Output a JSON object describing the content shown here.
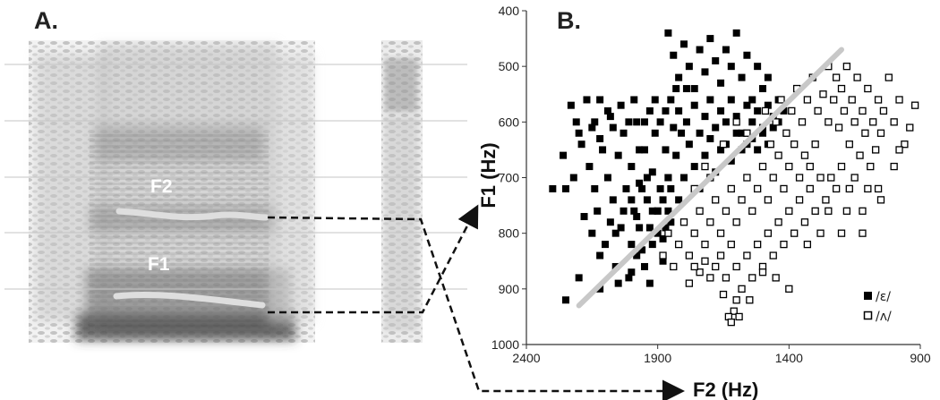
{
  "panels": {
    "a": "A.",
    "b": "B."
  },
  "spectrogram": {
    "f2_label": "F2",
    "f1_label": "F1"
  },
  "legend": [
    {
      "label": "/ɛ/",
      "marker": "filled-square",
      "color": "#000000"
    },
    {
      "label": "/ʌ/",
      "marker": "open-square",
      "color": "#000000"
    }
  ],
  "colors": {
    "divider": "#c8c8c8",
    "arrow": "#111111",
    "formant_track": "#d8d8d8"
  },
  "chart_data": {
    "type": "scatter",
    "xlabel": "F2 (Hz)",
    "ylabel": "F1 (Hz)",
    "xlim": [
      2400,
      900
    ],
    "ylim": [
      400,
      1000
    ],
    "x_reversed": true,
    "y_reversed": true,
    "xticks": [
      "2400",
      "1900",
      "1400",
      "900"
    ],
    "yticks": [
      "400",
      "500",
      "600",
      "700",
      "800",
      "900",
      "1000"
    ],
    "divider_line": {
      "from": [
        2200,
        930
      ],
      "to": [
        1200,
        470
      ]
    },
    "series": [
      {
        "name": "/ɛ/",
        "marker": "filled-square",
        "points": [
          [
            2300,
            720
          ],
          [
            2260,
            660
          ],
          [
            2250,
            720
          ],
          [
            2220,
            700
          ],
          [
            2210,
            600
          ],
          [
            2190,
            640
          ],
          [
            2180,
            770
          ],
          [
            2160,
            680
          ],
          [
            2150,
            610
          ],
          [
            2140,
            720
          ],
          [
            2130,
            760
          ],
          [
            2120,
            560
          ],
          [
            2110,
            650
          ],
          [
            2100,
            820
          ],
          [
            2090,
            700
          ],
          [
            2080,
            590
          ],
          [
            2070,
            740
          ],
          [
            2060,
            860
          ],
          [
            2050,
            660
          ],
          [
            2040,
            790
          ],
          [
            2030,
            620
          ],
          [
            2020,
            720
          ],
          [
            2010,
            880
          ],
          [
            2000,
            680
          ],
          [
            1990,
            760
          ],
          [
            1980,
            600
          ],
          [
            1970,
            710
          ],
          [
            1960,
            830
          ],
          [
            1950,
            650
          ],
          [
            1940,
            740
          ],
          [
            1930,
            790
          ],
          [
            1920,
            690
          ],
          [
            1910,
            620
          ],
          [
            1900,
            760
          ],
          [
            1890,
            720
          ],
          [
            1880,
            850
          ],
          [
            1870,
            650
          ],
          [
            1860,
            700
          ],
          [
            1850,
            780
          ],
          [
            1840,
            610
          ],
          [
            1860,
            440
          ],
          [
            1840,
            480
          ],
          [
            1820,
            520
          ],
          [
            1800,
            460
          ],
          [
            1780,
            500
          ],
          [
            1760,
            540
          ],
          [
            1740,
            470
          ],
          [
            1720,
            510
          ],
          [
            1700,
            450
          ],
          [
            1680,
            490
          ],
          [
            1660,
            530
          ],
          [
            1640,
            470
          ],
          [
            1620,
            500
          ],
          [
            1600,
            440
          ],
          [
            1580,
            520
          ],
          [
            1560,
            480
          ],
          [
            1540,
            560
          ],
          [
            1520,
            500
          ],
          [
            1500,
            540
          ],
          [
            1480,
            520
          ],
          [
            1820,
            580
          ],
          [
            1790,
            600
          ],
          [
            1760,
            570
          ],
          [
            1740,
            620
          ],
          [
            1720,
            590
          ],
          [
            1700,
            560
          ],
          [
            1680,
            610
          ],
          [
            1660,
            580
          ],
          [
            1640,
            600
          ],
          [
            1620,
            560
          ],
          [
            1600,
            590
          ],
          [
            1580,
            620
          ],
          [
            1560,
            570
          ],
          [
            1540,
            600
          ],
          [
            1520,
            580
          ],
          [
            1500,
            610
          ],
          [
            1480,
            570
          ],
          [
            1460,
            590
          ],
          [
            1440,
            560
          ],
          [
            1420,
            580
          ],
          [
            1830,
            660
          ],
          [
            1800,
            700
          ],
          [
            1780,
            640
          ],
          [
            1760,
            680
          ],
          [
            1740,
            720
          ],
          [
            1720,
            660
          ],
          [
            1700,
            630
          ],
          [
            1680,
            690
          ],
          [
            1660,
            650
          ],
          [
            1640,
            640
          ],
          [
            1620,
            670
          ],
          [
            1600,
            620
          ],
          [
            1580,
            650
          ],
          [
            1560,
            640
          ],
          [
            1540,
            630
          ],
          [
            1520,
            650
          ],
          [
            1500,
            620
          ],
          [
            1480,
            640
          ],
          [
            1460,
            610
          ],
          [
            1440,
            600
          ],
          [
            2230,
            570
          ],
          [
            2200,
            620
          ],
          [
            2170,
            560
          ],
          [
            2140,
            600
          ],
          [
            2120,
            630
          ],
          [
            2090,
            580
          ],
          [
            2070,
            610
          ],
          [
            2040,
            570
          ],
          [
            2010,
            600
          ],
          [
            1990,
            560
          ],
          [
            1970,
            650
          ],
          [
            1950,
            600
          ],
          [
            1930,
            580
          ],
          [
            1910,
            560
          ],
          [
            1890,
            600
          ],
          [
            1870,
            580
          ],
          [
            1850,
            560
          ],
          [
            1830,
            540
          ],
          [
            1810,
            620
          ],
          [
            1790,
            540
          ],
          [
            2000,
            740
          ],
          [
            1980,
            770
          ],
          [
            1960,
            720
          ],
          [
            1940,
            700
          ],
          [
            1920,
            760
          ],
          [
            1900,
            800
          ],
          [
            1880,
            740
          ],
          [
            1860,
            760
          ],
          [
            1850,
            720
          ],
          [
            1820,
            740
          ],
          [
            2150,
            800
          ],
          [
            2120,
            840
          ],
          [
            2080,
            780
          ],
          [
            2060,
            800
          ],
          [
            2030,
            760
          ],
          [
            2000,
            820
          ],
          [
            1970,
            790
          ],
          [
            1950,
            860
          ],
          [
            1920,
            820
          ],
          [
            1880,
            810
          ],
          [
            2250,
            920
          ],
          [
            2200,
            880
          ],
          [
            2120,
            900
          ],
          [
            2050,
            890
          ],
          [
            2000,
            870
          ],
          [
            1980,
            840
          ],
          [
            1930,
            890
          ],
          [
            1900,
            760
          ],
          [
            1870,
            790
          ],
          [
            1860,
            700
          ]
        ]
      },
      {
        "name": "/ʌ/",
        "marker": "open-square",
        "points": [
          [
            1250,
            500
          ],
          [
            1220,
            520
          ],
          [
            1200,
            540
          ],
          [
            1180,
            500
          ],
          [
            1160,
            560
          ],
          [
            1140,
            520
          ],
          [
            1120,
            580
          ],
          [
            1100,
            540
          ],
          [
            1080,
            600
          ],
          [
            1060,
            560
          ],
          [
            1040,
            580
          ],
          [
            1020,
            520
          ],
          [
            1000,
            600
          ],
          [
            980,
            560
          ],
          [
            960,
            640
          ],
          [
            940,
            610
          ],
          [
            920,
            570
          ],
          [
            1050,
            620
          ],
          [
            1070,
            650
          ],
          [
            1090,
            680
          ],
          [
            1110,
            620
          ],
          [
            1130,
            660
          ],
          [
            1150,
            600
          ],
          [
            1170,
            640
          ],
          [
            1190,
            580
          ],
          [
            1210,
            610
          ],
          [
            1230,
            560
          ],
          [
            1250,
            600
          ],
          [
            1270,
            550
          ],
          [
            1290,
            580
          ],
          [
            1310,
            520
          ],
          [
            1330,
            560
          ],
          [
            1350,
            600
          ],
          [
            1370,
            540
          ],
          [
            1390,
            580
          ],
          [
            1410,
            620
          ],
          [
            1430,
            560
          ],
          [
            1450,
            600
          ],
          [
            1470,
            640
          ],
          [
            1490,
            580
          ],
          [
            1300,
            640
          ],
          [
            1320,
            680
          ],
          [
            1340,
            660
          ],
          [
            1360,
            700
          ],
          [
            1380,
            640
          ],
          [
            1400,
            680
          ],
          [
            1420,
            720
          ],
          [
            1440,
            660
          ],
          [
            1460,
            700
          ],
          [
            1480,
            740
          ],
          [
            1500,
            680
          ],
          [
            1520,
            720
          ],
          [
            1540,
            760
          ],
          [
            1560,
            700
          ],
          [
            1580,
            740
          ],
          [
            1600,
            780
          ],
          [
            1620,
            720
          ],
          [
            1640,
            760
          ],
          [
            1660,
            800
          ],
          [
            1680,
            740
          ],
          [
            1700,
            780
          ],
          [
            1720,
            820
          ],
          [
            1740,
            760
          ],
          [
            1760,
            800
          ],
          [
            1780,
            840
          ],
          [
            1800,
            780
          ],
          [
            1820,
            820
          ],
          [
            1840,
            860
          ],
          [
            1860,
            800
          ],
          [
            1880,
            840
          ],
          [
            1200,
            680
          ],
          [
            1220,
            720
          ],
          [
            1240,
            700
          ],
          [
            1260,
            740
          ],
          [
            1280,
            700
          ],
          [
            1300,
            760
          ],
          [
            1320,
            720
          ],
          [
            1340,
            780
          ],
          [
            1360,
            740
          ],
          [
            1380,
            800
          ],
          [
            1400,
            760
          ],
          [
            1420,
            820
          ],
          [
            1440,
            780
          ],
          [
            1460,
            840
          ],
          [
            1480,
            800
          ],
          [
            1500,
            860
          ],
          [
            1520,
            820
          ],
          [
            1540,
            880
          ],
          [
            1560,
            840
          ],
          [
            1580,
            900
          ],
          [
            1600,
            860
          ],
          [
            1620,
            820
          ],
          [
            1640,
            880
          ],
          [
            1660,
            840
          ],
          [
            1680,
            860
          ],
          [
            1700,
            880
          ],
          [
            1720,
            850
          ],
          [
            1740,
            870
          ],
          [
            1760,
            860
          ],
          [
            1780,
            890
          ],
          [
            1400,
            900
          ],
          [
            1450,
            880
          ],
          [
            1500,
            870
          ],
          [
            1550,
            920
          ],
          [
            1600,
            920
          ],
          [
            1610,
            940
          ],
          [
            1590,
            950
          ],
          [
            1630,
            950
          ],
          [
            1620,
            960
          ],
          [
            1650,
            910
          ],
          [
            1000,
            680
          ],
          [
            980,
            650
          ],
          [
            1150,
            700
          ],
          [
            1170,
            720
          ],
          [
            1100,
            720
          ],
          [
            1180,
            760
          ],
          [
            1060,
            720
          ],
          [
            1250,
            760
          ],
          [
            1280,
            800
          ],
          [
            1120,
            800
          ],
          [
            1120,
            760
          ],
          [
            1050,
            740
          ],
          [
            1330,
            820
          ],
          [
            1200,
            800
          ],
          [
            1600,
            600
          ],
          [
            1560,
            620
          ],
          [
            1650,
            640
          ],
          [
            1700,
            700
          ],
          [
            1720,
            680
          ],
          [
            1760,
            720
          ]
        ]
      }
    ]
  }
}
